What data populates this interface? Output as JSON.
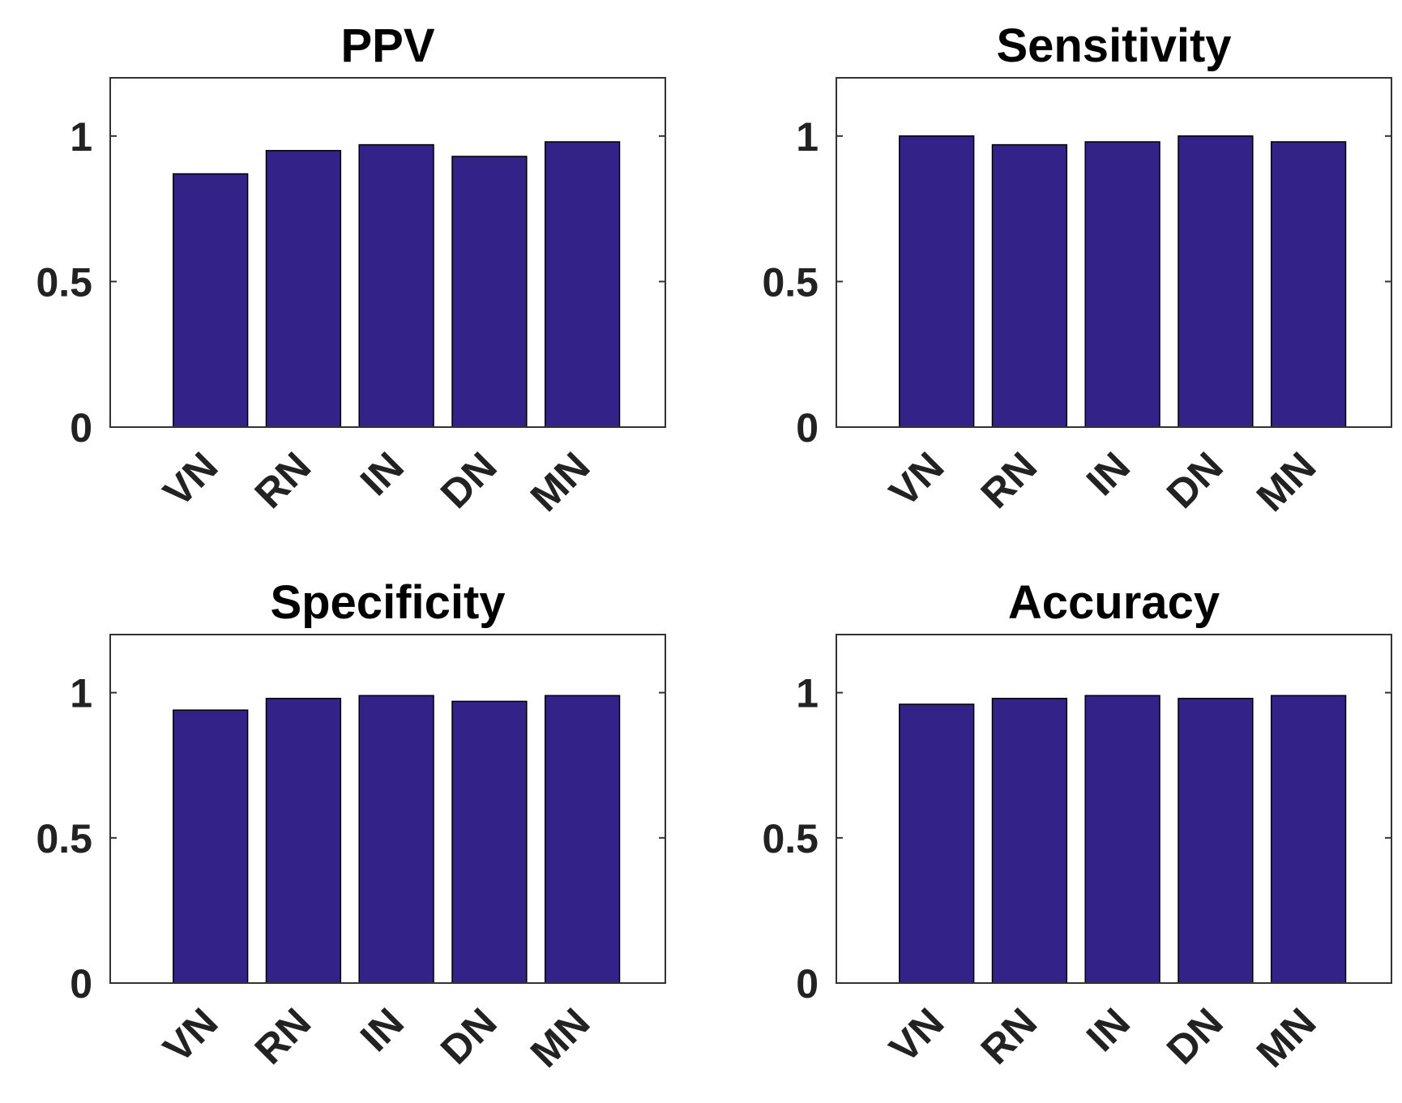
{
  "chart_data": [
    {
      "type": "bar",
      "title": "PPV",
      "categories": [
        "VN",
        "RN",
        "IN",
        "DN",
        "MN"
      ],
      "values": [
        0.87,
        0.95,
        0.97,
        0.93,
        0.98
      ],
      "xlabel": "",
      "ylabel": "",
      "ylim": [
        0,
        1.2
      ],
      "yticks": [
        0,
        0.5,
        1
      ],
      "ytick_labels": [
        "0",
        "0.5",
        "1"
      ],
      "grid": false,
      "bar_color": "#332288"
    },
    {
      "type": "bar",
      "title": "Sensitivity",
      "categories": [
        "VN",
        "RN",
        "IN",
        "DN",
        "MN"
      ],
      "values": [
        1.0,
        0.97,
        0.98,
        1.0,
        0.98
      ],
      "xlabel": "",
      "ylabel": "",
      "ylim": [
        0,
        1.2
      ],
      "yticks": [
        0,
        0.5,
        1
      ],
      "ytick_labels": [
        "0",
        "0.5",
        "1"
      ],
      "grid": false,
      "bar_color": "#332288"
    },
    {
      "type": "bar",
      "title": "Specificity",
      "categories": [
        "VN",
        "RN",
        "IN",
        "DN",
        "MN"
      ],
      "values": [
        0.94,
        0.98,
        0.99,
        0.97,
        0.99
      ],
      "xlabel": "",
      "ylabel": "",
      "ylim": [
        0,
        1.2
      ],
      "yticks": [
        0,
        0.5,
        1
      ],
      "ytick_labels": [
        "0",
        "0.5",
        "1"
      ],
      "grid": false,
      "bar_color": "#332288"
    },
    {
      "type": "bar",
      "title": "Accuracy",
      "categories": [
        "VN",
        "RN",
        "IN",
        "DN",
        "MN"
      ],
      "values": [
        0.96,
        0.98,
        0.99,
        0.98,
        0.99
      ],
      "xlabel": "",
      "ylabel": "",
      "ylim": [
        0,
        1.2
      ],
      "yticks": [
        0,
        0.5,
        1
      ],
      "ytick_labels": [
        "0",
        "0.5",
        "1"
      ],
      "grid": false,
      "bar_color": "#332288"
    }
  ]
}
